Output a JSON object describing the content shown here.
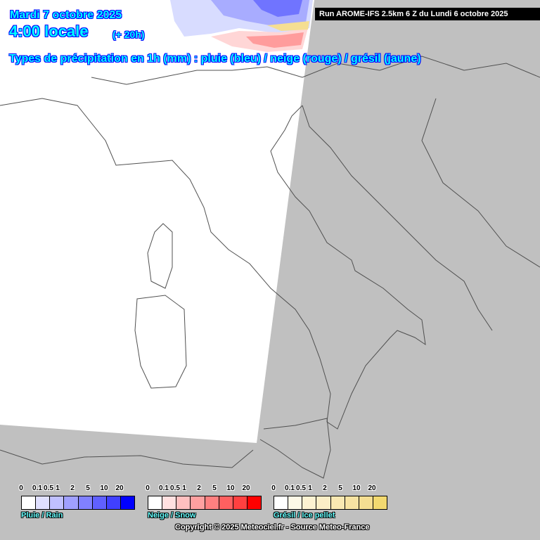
{
  "header": {
    "date": "Mardi 7 octobre 2025",
    "time": "4:00 locale",
    "lead": "(+ 20h)",
    "subtitle": "Types de précipitation en 1h (mm) : pluie (bleu) / neige (rouge) / grésil (jaune)",
    "run": "Run AROME-IFS 2.5km 6 Z du Lundi 6 octobre 2025"
  },
  "map": {
    "background_color": "#c0c0c0",
    "model_domain_color": "#ffffff",
    "border_color": "#505050"
  },
  "legends": [
    {
      "label": "Pluie / Rain",
      "ticks": [
        "0",
        "0.1",
        "0.5",
        "1",
        "2",
        "5",
        "10",
        "20"
      ],
      "colors": [
        "#ffffff",
        "#e0e0ff",
        "#c0c0ff",
        "#a0a0ff",
        "#8080ff",
        "#6060ff",
        "#4040ff",
        "#0000ff"
      ]
    },
    {
      "label": "Neige / Snow",
      "ticks": [
        "0",
        "0.1",
        "0.5",
        "1",
        "2",
        "5",
        "10",
        "20"
      ],
      "colors": [
        "#ffffff",
        "#ffe0e0",
        "#ffc0c0",
        "#ffa0a0",
        "#ff8080",
        "#ff6060",
        "#ff4040",
        "#ff0000"
      ]
    },
    {
      "label": "Grésil / Ice pellet",
      "ticks": [
        "0",
        "0.1",
        "0.5",
        "1",
        "2",
        "5",
        "10",
        "20"
      ],
      "colors": [
        "#ffffff",
        "#fdf8e6",
        "#fcf2d2",
        "#fbeec6",
        "#f9e8b2",
        "#f7e3a2",
        "#f5de92",
        "#f2d970"
      ]
    }
  ],
  "copyright": "Copyright © 2025 Meteociel.fr - Source Meteo-France"
}
